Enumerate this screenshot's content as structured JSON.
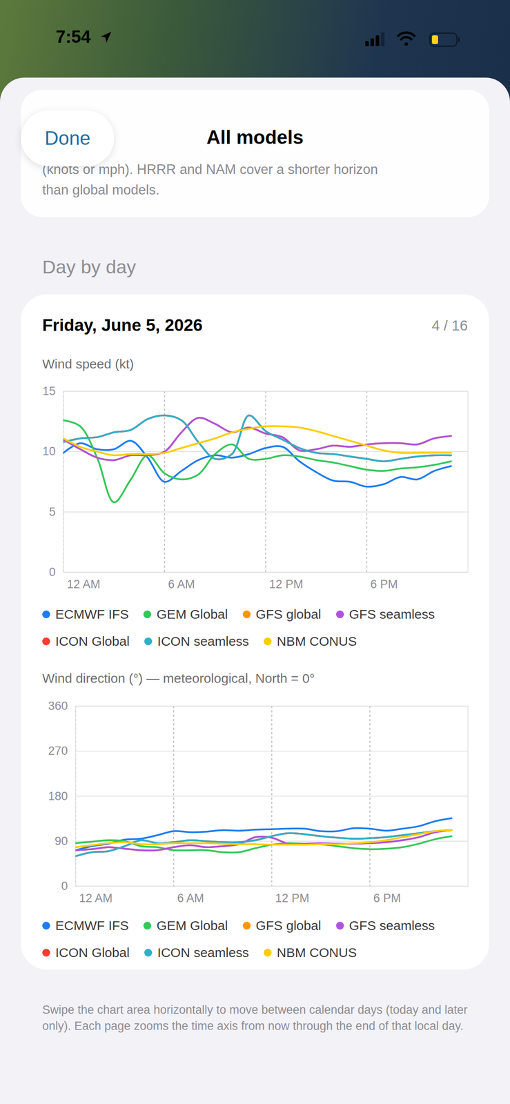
{
  "status_bar": {
    "time": "7:54"
  },
  "header": {
    "button": "Done",
    "title": "All models"
  },
  "note": {
    "lines": [
      "(knots or mph). HRRR and NAM cover a shorter horizon",
      "than global models."
    ]
  },
  "section": "Day by day",
  "card": {
    "title": "Friday, June 5, 2026",
    "page": "4 / 16"
  },
  "chart_data": [
    {
      "type": "line",
      "title": "Wind speed (kt)",
      "x": [
        0,
        1,
        2,
        3,
        4,
        5,
        6,
        7,
        8,
        9,
        10,
        11,
        12,
        13,
        14,
        15,
        16,
        17,
        18,
        19,
        20,
        21,
        22,
        23
      ],
      "xlim": [
        0,
        24
      ],
      "xticks": [
        {
          "value": 0,
          "label": "12 AM"
        },
        {
          "value": 6,
          "label": "6 AM"
        },
        {
          "value": 12,
          "label": "12 PM"
        },
        {
          "value": 18,
          "label": "6 PM"
        }
      ],
      "ylim": [
        0,
        15
      ],
      "yticks": [
        0,
        5,
        10,
        15
      ],
      "grid": true,
      "legend": "bottom",
      "series": [
        {
          "name": "ECMWF IFS",
          "color": "#1e7cf2",
          "values": [
            9.9,
            10.7,
            10.2,
            10.2,
            10.9,
            9.5,
            7.5,
            8.4,
            9.3,
            9.7,
            9.5,
            9.8,
            10.3,
            10.4,
            9.2,
            8.3,
            7.6,
            7.5,
            7.1,
            7.3,
            7.9,
            7.7,
            8.4,
            8.8
          ]
        },
        {
          "name": "GEM Global",
          "color": "#34c759",
          "values": [
            12.6,
            12.1,
            9.5,
            5.8,
            7.7,
            9.7,
            8.2,
            7.7,
            8.1,
            9.8,
            10.6,
            9.4,
            9.4,
            9.7,
            9.6,
            9.3,
            9.1,
            8.8,
            8.5,
            8.4,
            8.6,
            8.7,
            8.9,
            9.2
          ]
        },
        {
          "name": "GFS global",
          "color": "#ff9500",
          "values": [
            11.0,
            10.2,
            9.5,
            9.3,
            9.7,
            9.7,
            10.0,
            11.6,
            12.8,
            12.3,
            11.6,
            12.0,
            11.5,
            11.2,
            10.1,
            10.2,
            10.5,
            10.4,
            10.6,
            10.7,
            10.7,
            10.6,
            11.1,
            11.3
          ]
        },
        {
          "name": "GFS seamless",
          "color": "#af52de",
          "values": [
            11.0,
            10.2,
            9.5,
            9.3,
            9.7,
            9.7,
            10.0,
            11.6,
            12.8,
            12.3,
            11.6,
            12.0,
            11.5,
            11.2,
            10.1,
            10.2,
            10.5,
            10.4,
            10.6,
            10.7,
            10.7,
            10.6,
            11.1,
            11.3
          ]
        },
        {
          "name": "ICON Global",
          "color": "#ff3b30",
          "values": [
            10.8,
            11.1,
            11.2,
            11.6,
            11.8,
            12.7,
            13.0,
            12.6,
            10.8,
            9.4,
            9.8,
            13.0,
            11.7,
            11.0,
            10.3,
            9.9,
            9.8,
            9.6,
            9.4,
            9.2,
            9.4,
            9.6,
            9.7,
            9.7
          ]
        },
        {
          "name": "ICON seamless",
          "color": "#30b0c7",
          "values": [
            10.8,
            11.1,
            11.2,
            11.6,
            11.8,
            12.7,
            13.0,
            12.6,
            10.8,
            9.4,
            9.8,
            13.0,
            11.7,
            11.0,
            10.3,
            9.9,
            9.8,
            9.6,
            9.4,
            9.2,
            9.4,
            9.6,
            9.7,
            9.7
          ]
        },
        {
          "name": "NBM CONUS",
          "color": "#ffcc00",
          "values": [
            11.1,
            10.4,
            10.0,
            9.7,
            9.8,
            9.8,
            9.9,
            10.3,
            10.7,
            11.1,
            11.6,
            11.9,
            12.1,
            12.1,
            12.0,
            11.7,
            11.3,
            10.9,
            10.5,
            10.1,
            9.9,
            9.9,
            9.9,
            9.9
          ]
        }
      ]
    },
    {
      "type": "line",
      "title": "Wind direction (°) — meteorological, North = 0°",
      "x": [
        0,
        1,
        2,
        3,
        4,
        5,
        6,
        7,
        8,
        9,
        10,
        11,
        12,
        13,
        14,
        15,
        16,
        17,
        18,
        19,
        20,
        21,
        22,
        23
      ],
      "xlim": [
        0,
        24
      ],
      "xticks": [
        {
          "value": 0,
          "label": "12 AM"
        },
        {
          "value": 6,
          "label": "6 AM"
        },
        {
          "value": 12,
          "label": "12 PM"
        },
        {
          "value": 18,
          "label": "6 PM"
        }
      ],
      "ylim": [
        0,
        360
      ],
      "yticks": [
        0,
        90,
        180,
        270,
        360
      ],
      "grid": true,
      "legend": "bottom",
      "series": [
        {
          "name": "ECMWF IFS",
          "color": "#1e7cf2",
          "values": [
            72,
            80,
            85,
            93,
            95,
            102,
            110,
            108,
            109,
            112,
            111,
            113,
            114,
            115,
            115,
            110,
            110,
            116,
            115,
            111,
            115,
            120,
            130,
            136
          ]
        },
        {
          "name": "GEM Global",
          "color": "#34c759",
          "values": [
            86,
            89,
            92,
            90,
            80,
            78,
            72,
            72,
            72,
            68,
            68,
            76,
            83,
            86,
            85,
            84,
            80,
            76,
            74,
            75,
            78,
            85,
            94,
            100
          ]
        },
        {
          "name": "GFS global",
          "color": "#ff9500",
          "values": [
            72,
            74,
            78,
            75,
            72,
            72,
            78,
            82,
            78,
            80,
            84,
            98,
            97,
            85,
            85,
            86,
            85,
            85,
            86,
            88,
            92,
            98,
            108,
            112
          ]
        },
        {
          "name": "GFS seamless",
          "color": "#af52de",
          "values": [
            72,
            74,
            78,
            75,
            72,
            72,
            78,
            82,
            78,
            80,
            84,
            98,
            97,
            85,
            85,
            86,
            85,
            85,
            86,
            88,
            92,
            98,
            108,
            112
          ]
        },
        {
          "name": "ICON Global",
          "color": "#ff3b30",
          "values": [
            60,
            68,
            70,
            80,
            92,
            86,
            88,
            92,
            90,
            88,
            88,
            92,
            100,
            106,
            104,
            100,
            97,
            95,
            96,
            98,
            102,
            106,
            110,
            112
          ]
        },
        {
          "name": "ICON seamless",
          "color": "#30b0c7",
          "values": [
            60,
            68,
            70,
            80,
            92,
            86,
            88,
            92,
            90,
            88,
            88,
            92,
            100,
            106,
            104,
            100,
            97,
            95,
            96,
            98,
            102,
            106,
            110,
            112
          ]
        },
        {
          "name": "NBM CONUS",
          "color": "#ffcc00",
          "values": [
            78,
            82,
            86,
            88,
            84,
            84,
            86,
            86,
            86,
            85,
            84,
            84,
            83,
            83,
            83,
            84,
            84,
            86,
            88,
            92,
            98,
            104,
            110,
            112
          ]
        }
      ]
    }
  ],
  "footer": "Swipe the chart area horizontally to move between calendar days (today and later only). Each page zooms the time axis from now through the end of that local day."
}
